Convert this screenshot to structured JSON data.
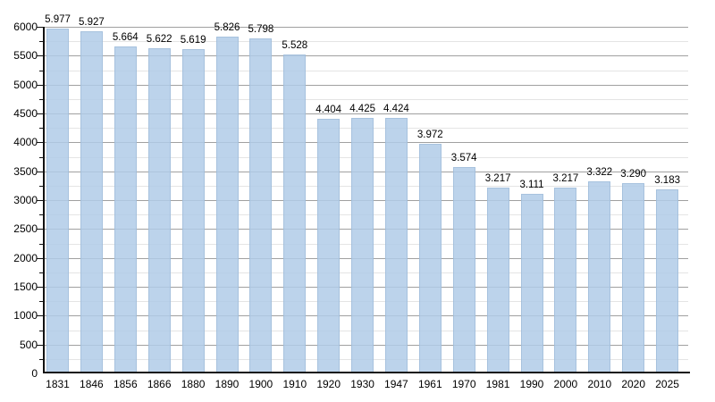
{
  "chart_data": {
    "type": "bar",
    "title": "",
    "xlabel": "",
    "ylabel": "",
    "categories": [
      "1831",
      "1846",
      "1856",
      "1866",
      "1880",
      "1890",
      "1900",
      "1910",
      "1920",
      "1930",
      "1947",
      "1961",
      "1970",
      "1981",
      "1990",
      "2000",
      "2010",
      "2020",
      "2025"
    ],
    "values": [
      5977,
      5927,
      5664,
      5622,
      5619,
      5826,
      5798,
      5528,
      4404,
      4425,
      4424,
      3972,
      3574,
      3217,
      3111,
      3217,
      3322,
      3290,
      3183
    ],
    "value_labels": [
      "5.977",
      "5.927",
      "5.664",
      "5.622",
      "5.619",
      "5.826",
      "5.798",
      "5.528",
      "4.404",
      "4.425",
      "4.424",
      "3.972",
      "3.574",
      "3.217",
      "3.111",
      "3.217",
      "3.322",
      "3.290",
      "3.183"
    ],
    "ylim": [
      0,
      6000
    ],
    "y_major_step": 500,
    "y_minor_step": 250,
    "y_tick_labels": [
      "0",
      "500",
      "1000",
      "1500",
      "2000",
      "2500",
      "3000",
      "3500",
      "4000",
      "4500",
      "5000",
      "5500",
      "6000"
    ],
    "grid": true,
    "legend_position": "none",
    "colors": {
      "bar_fill": "rgba(176, 203, 231, 0.85)",
      "bar_edge": "rgba(150, 180, 212, 0.55)",
      "major_grid": "#a0a0a0",
      "minor_grid": "#e4e4e4",
      "axis": "#111111",
      "text": "#000000",
      "background": "#ffffff"
    }
  }
}
